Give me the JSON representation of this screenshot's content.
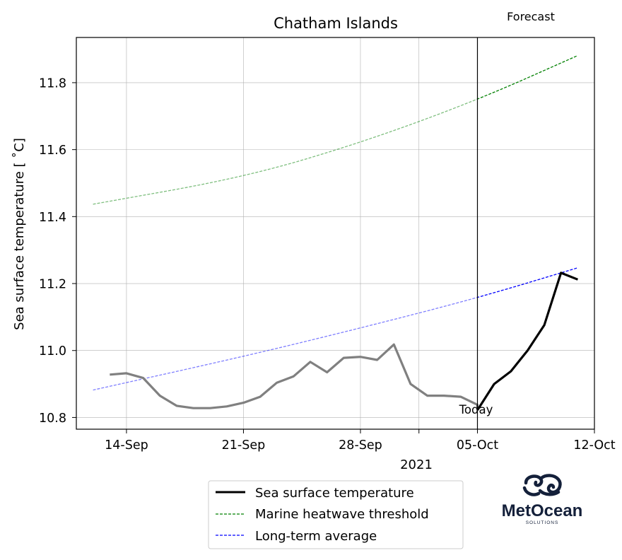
{
  "chart_data": {
    "type": "line",
    "title": "Chatham Islands",
    "xlabel": "2021",
    "ylabel": "Sea surface temperature [$^\\circ$C]",
    "ylabel_display": "Sea surface temperature [ ˚C]",
    "xlim": [
      "2021-09-11",
      "2021-10-12"
    ],
    "ylim": [
      10.765,
      11.935
    ],
    "x_ticks": [
      {
        "date": "2021-09-14",
        "label": "14-Sep"
      },
      {
        "date": "2021-09-21",
        "label": "21-Sep"
      },
      {
        "date": "2021-09-28",
        "label": "28-Sep"
      },
      {
        "date": "2021-10-05",
        "label": "05-Oct"
      },
      {
        "date": "2021-10-12",
        "label": "12-Oct"
      }
    ],
    "y_ticks": [
      10.8,
      11.0,
      11.2,
      11.4,
      11.6,
      11.8
    ],
    "grid": true,
    "today": {
      "date": "2021-10-05",
      "label": "Today"
    },
    "forecast_label": "Forecast",
    "legend_position": "bottom-center",
    "series": [
      {
        "name": "Sea surface temperature",
        "role": "observed",
        "color": "#808080",
        "style": "solid",
        "points": [
          [
            "2021-09-13",
            10.928
          ],
          [
            "2021-09-14",
            10.932
          ],
          [
            "2021-09-15",
            10.918
          ],
          [
            "2021-09-16",
            10.865
          ],
          [
            "2021-09-17",
            10.835
          ],
          [
            "2021-09-18",
            10.828
          ],
          [
            "2021-09-19",
            10.828
          ],
          [
            "2021-09-20",
            10.833
          ],
          [
            "2021-09-21",
            10.844
          ],
          [
            "2021-09-22",
            10.862
          ],
          [
            "2021-09-23",
            10.904
          ],
          [
            "2021-09-24",
            10.923
          ],
          [
            "2021-09-25",
            10.966
          ],
          [
            "2021-09-26",
            10.935
          ],
          [
            "2021-09-27",
            10.978
          ],
          [
            "2021-09-28",
            10.981
          ],
          [
            "2021-09-29",
            10.972
          ],
          [
            "2021-09-30",
            11.018
          ],
          [
            "2021-10-01",
            10.9
          ],
          [
            "2021-10-02",
            10.865
          ],
          [
            "2021-10-03",
            10.865
          ],
          [
            "2021-10-04",
            10.862
          ],
          [
            "2021-10-05",
            10.838
          ],
          [
            "2021-10-05",
            10.822
          ]
        ]
      },
      {
        "name": "Sea surface temperature",
        "role": "forecast",
        "color": "#000000",
        "style": "solid",
        "points": [
          [
            "2021-10-05",
            10.822
          ],
          [
            "2021-10-06",
            10.9
          ],
          [
            "2021-10-07",
            10.938
          ],
          [
            "2021-10-08",
            11.0
          ],
          [
            "2021-10-09",
            11.076
          ],
          [
            "2021-10-10",
            11.232
          ],
          [
            "2021-10-11",
            11.212
          ]
        ]
      },
      {
        "name": "Marine heatwave threshold",
        "color": "#008000",
        "style": "dashed",
        "start": [
          "2021-09-12",
          11.437
        ],
        "end": [
          "2021-10-11",
          11.881
        ],
        "points": [
          [
            "2021-09-12",
            11.437
          ],
          [
            "2021-09-21",
            11.517
          ],
          [
            "2021-09-28",
            11.62
          ],
          [
            "2021-10-05",
            11.748
          ],
          [
            "2021-10-11",
            11.881
          ]
        ]
      },
      {
        "name": "Long-term average",
        "color": "#0000ff",
        "style": "dashed",
        "points": [
          [
            "2021-09-12",
            10.882
          ],
          [
            "2021-09-21",
            10.982
          ],
          [
            "2021-09-28",
            11.067
          ],
          [
            "2021-10-05",
            11.157
          ],
          [
            "2021-10-11",
            11.247
          ]
        ]
      }
    ]
  },
  "legend": {
    "items": [
      {
        "label": "Sea surface temperature",
        "color": "#000000",
        "style": "solid"
      },
      {
        "label": "Marine heatwave threshold",
        "color": "#008000",
        "style": "dashed"
      },
      {
        "label": "Long-term average",
        "color": "#0000ff",
        "style": "dashed"
      }
    ]
  },
  "logo": {
    "name": "MetOcean",
    "tagline": "SOLUTIONS",
    "color": "#14203a"
  }
}
